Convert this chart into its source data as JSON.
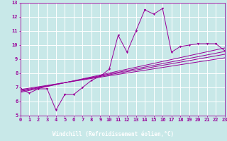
{
  "xlabel": "Windchill (Refroidissement éolien,°C)",
  "background_color": "#c8e8e8",
  "axis_bg_color": "#c8e8e8",
  "line_color": "#990099",
  "grid_color": "#ffffff",
  "bottom_bar_color": "#660066",
  "label_text_color": "#ffffff",
  "xlim": [
    0,
    23
  ],
  "ylim": [
    5,
    13
  ],
  "xticks": [
    0,
    1,
    2,
    3,
    4,
    5,
    6,
    7,
    8,
    9,
    10,
    11,
    12,
    13,
    14,
    15,
    16,
    17,
    18,
    19,
    20,
    21,
    22,
    23
  ],
  "yticks": [
    5,
    6,
    7,
    8,
    9,
    10,
    11,
    12,
    13
  ],
  "main_series": {
    "x": [
      0,
      1,
      2,
      3,
      4,
      5,
      6,
      7,
      8,
      9,
      10,
      11,
      12,
      13,
      14,
      15,
      16,
      17,
      18,
      19,
      20,
      21,
      22,
      23
    ],
    "y": [
      6.9,
      6.6,
      6.9,
      6.9,
      5.4,
      6.5,
      6.5,
      7.0,
      7.5,
      7.8,
      8.3,
      10.7,
      9.5,
      11.0,
      12.5,
      12.2,
      12.6,
      9.5,
      9.9,
      10.0,
      10.1,
      10.1,
      10.1,
      9.6
    ]
  },
  "regression_lines": [
    {
      "x": [
        0,
        23
      ],
      "y": [
        6.65,
        9.8
      ]
    },
    {
      "x": [
        0,
        23
      ],
      "y": [
        6.72,
        9.55
      ]
    },
    {
      "x": [
        0,
        23
      ],
      "y": [
        6.78,
        9.35
      ]
    },
    {
      "x": [
        0,
        23
      ],
      "y": [
        6.85,
        9.1
      ]
    }
  ],
  "tick_fontsize": 5.0,
  "label_fontsize": 5.5,
  "tick_color": "#990099",
  "spine_color": "#990099"
}
